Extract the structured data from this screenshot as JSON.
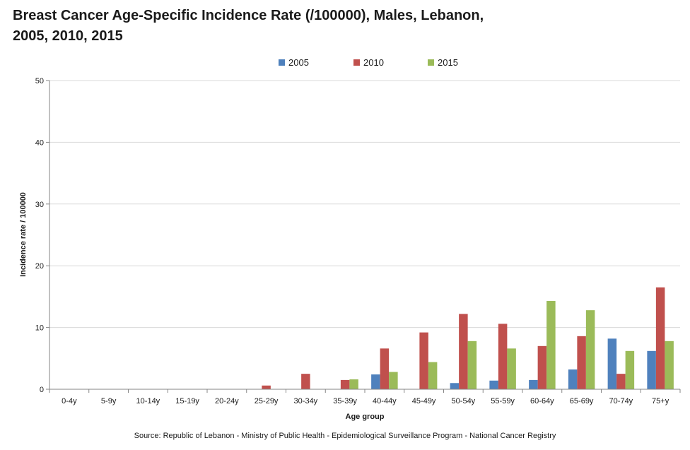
{
  "chart_data": {
    "type": "bar",
    "title": "Breast Cancer Age-Specific Incidence Rate (/100000),  Males, Lebanon, 2005, 2010, 2015",
    "xlabel": "Age group",
    "ylabel": "Incidence  rate / 100000",
    "ylim": [
      0,
      50
    ],
    "yticks": [
      0,
      10,
      20,
      30,
      40,
      50
    ],
    "grid": true,
    "legend_position": "top-center",
    "categories": [
      "0-4y",
      "5-9y",
      "10-14y",
      "15-19y",
      "20-24y",
      "25-29y",
      "30-34y",
      "35-39y",
      "40-44y",
      "45-49y",
      "50-54y",
      "55-59y",
      "60-64y",
      "65-69y",
      "70-74y",
      "75+y"
    ],
    "series": [
      {
        "name": "2005",
        "color": "#4f81bd",
        "values": [
          0,
          0,
          0,
          0,
          0,
          0,
          0,
          0,
          2.4,
          0,
          1.0,
          1.4,
          1.5,
          3.2,
          8.2,
          6.2
        ]
      },
      {
        "name": "2010",
        "color": "#c0504d",
        "values": [
          0,
          0,
          0,
          0,
          0,
          0.6,
          2.5,
          1.5,
          6.6,
          9.2,
          12.2,
          10.6,
          7.0,
          8.6,
          2.5,
          16.5
        ]
      },
      {
        "name": "2015",
        "color": "#9bbb59",
        "values": [
          0,
          0,
          0,
          0,
          0,
          0,
          0,
          1.6,
          2.8,
          4.4,
          7.8,
          6.6,
          14.3,
          12.8,
          6.2,
          7.8
        ]
      }
    ]
  },
  "source": "Source: Republic of Lebanon - Ministry of Public Health - Epidemiological Surveillance Program - National Cancer Registry"
}
